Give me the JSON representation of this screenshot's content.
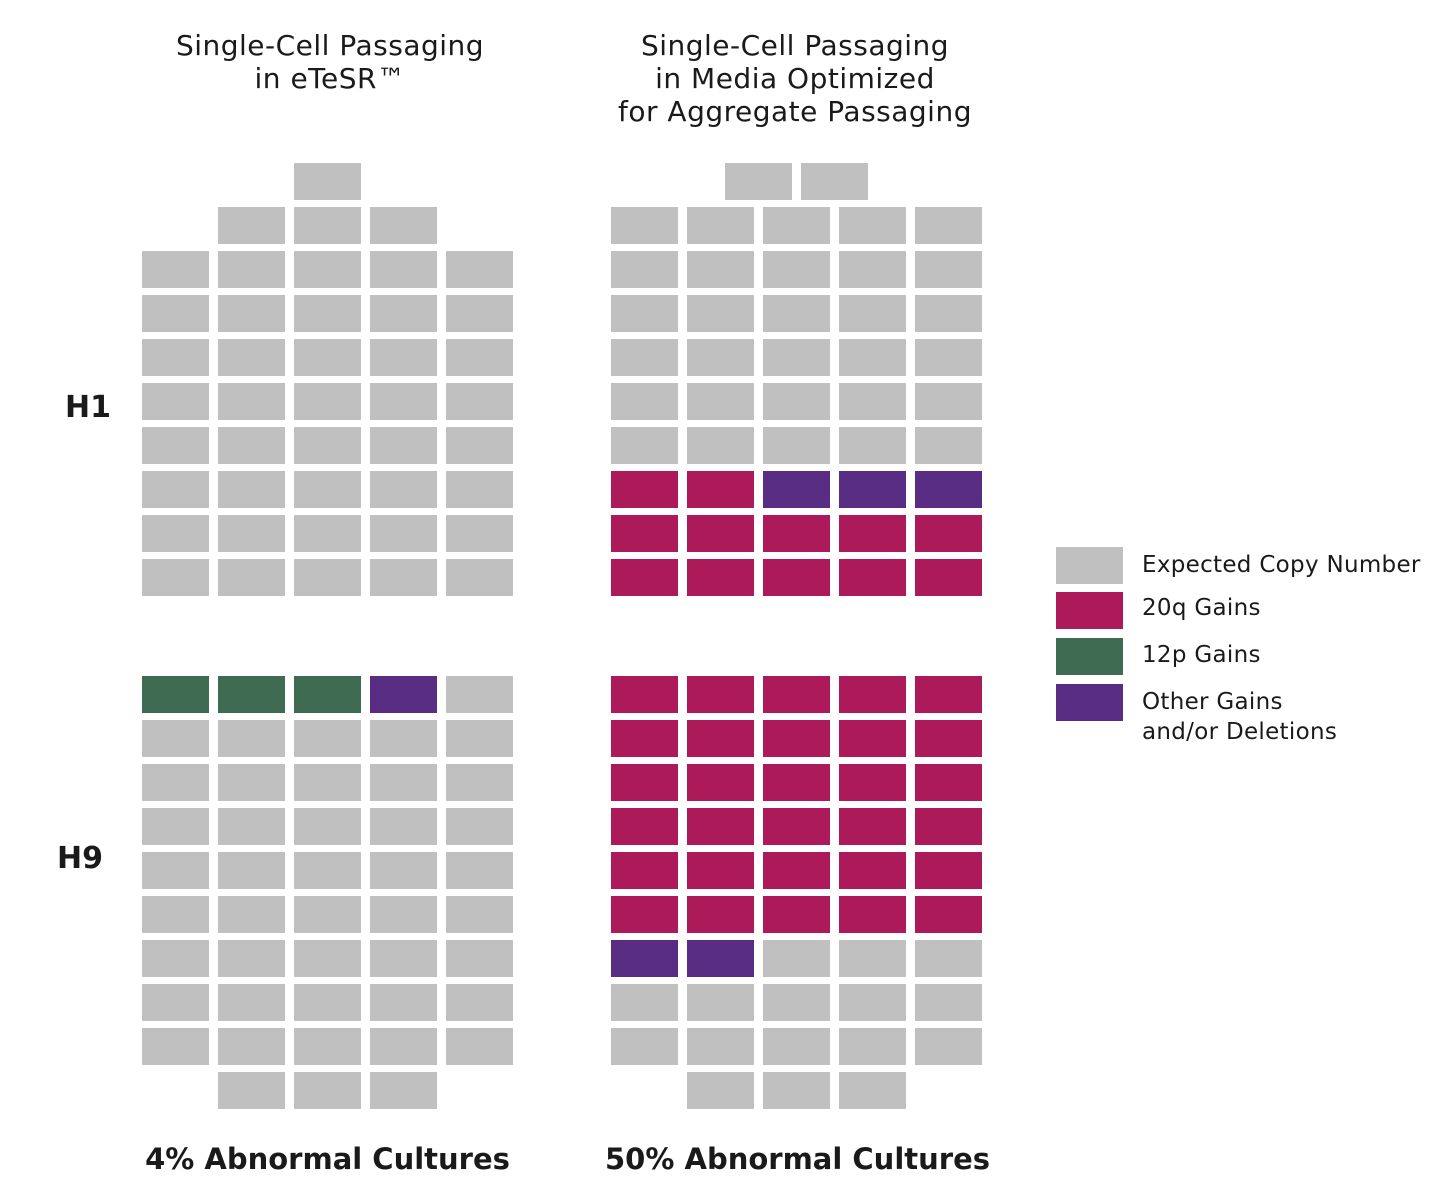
{
  "colors": {
    "expected": "#c0c0c0",
    "gain20q": "#ad1a59",
    "gain12p": "#3f6b53",
    "other": "#5a2d84"
  },
  "titles": {
    "left": [
      "Single-Cell Passaging",
      "in eTeSR™"
    ],
    "right": [
      "Single-Cell Passaging",
      "in Media Optimized",
      "for Aggregate Passaging"
    ]
  },
  "row_labels": {
    "h1": "H1",
    "h9": "H9"
  },
  "footers": {
    "left": "4% Abnormal Cultures",
    "right": "50% Abnormal Cultures"
  },
  "legend": [
    {
      "key": "expected",
      "label": "Expected Copy Number"
    },
    {
      "key": "gain20q",
      "label": "20q Gains"
    },
    {
      "key": "gain12p",
      "label": "12p Gains"
    },
    {
      "key": "other",
      "label": "Other Gains",
      "label2": "and/or Deletions"
    }
  ],
  "chart_data": {
    "type": "waffle",
    "title": "",
    "columns_per_panel": 5,
    "panels": [
      {
        "name": "H1 Single-Cell Passaging in eTeSR",
        "row_lengths": [
          1,
          3,
          5,
          5,
          5,
          5,
          5,
          5,
          5,
          5
        ],
        "cells": [
          [
            "expected"
          ],
          [
            "expected",
            "expected",
            "expected"
          ],
          [
            "expected",
            "expected",
            "expected",
            "expected",
            "expected"
          ],
          [
            "expected",
            "expected",
            "expected",
            "expected",
            "expected"
          ],
          [
            "expected",
            "expected",
            "expected",
            "expected",
            "expected"
          ],
          [
            "expected",
            "expected",
            "expected",
            "expected",
            "expected"
          ],
          [
            "expected",
            "expected",
            "expected",
            "expected",
            "expected"
          ],
          [
            "expected",
            "expected",
            "expected",
            "expected",
            "expected"
          ],
          [
            "expected",
            "expected",
            "expected",
            "expected",
            "expected"
          ],
          [
            "expected",
            "expected",
            "expected",
            "expected",
            "expected"
          ]
        ]
      },
      {
        "name": "H1 Single-Cell Passaging in Media Optimized for Aggregate Passaging",
        "row_lengths": [
          2,
          5,
          5,
          5,
          5,
          5,
          5,
          5,
          5,
          5
        ],
        "cells": [
          [
            "expected",
            "expected"
          ],
          [
            "expected",
            "expected",
            "expected",
            "expected",
            "expected"
          ],
          [
            "expected",
            "expected",
            "expected",
            "expected",
            "expected"
          ],
          [
            "expected",
            "expected",
            "expected",
            "expected",
            "expected"
          ],
          [
            "expected",
            "expected",
            "expected",
            "expected",
            "expected"
          ],
          [
            "expected",
            "expected",
            "expected",
            "expected",
            "expected"
          ],
          [
            "expected",
            "expected",
            "expected",
            "expected",
            "expected"
          ],
          [
            "gain20q",
            "gain20q",
            "other",
            "other",
            "other"
          ],
          [
            "gain20q",
            "gain20q",
            "gain20q",
            "gain20q",
            "gain20q"
          ],
          [
            "gain20q",
            "gain20q",
            "gain20q",
            "gain20q",
            "gain20q"
          ]
        ]
      },
      {
        "name": "H9 Single-Cell Passaging in eTeSR",
        "row_lengths": [
          5,
          5,
          5,
          5,
          5,
          5,
          5,
          5,
          5,
          3
        ],
        "cells": [
          [
            "gain12p",
            "gain12p",
            "gain12p",
            "other",
            "expected"
          ],
          [
            "expected",
            "expected",
            "expected",
            "expected",
            "expected"
          ],
          [
            "expected",
            "expected",
            "expected",
            "expected",
            "expected"
          ],
          [
            "expected",
            "expected",
            "expected",
            "expected",
            "expected"
          ],
          [
            "expected",
            "expected",
            "expected",
            "expected",
            "expected"
          ],
          [
            "expected",
            "expected",
            "expected",
            "expected",
            "expected"
          ],
          [
            "expected",
            "expected",
            "expected",
            "expected",
            "expected"
          ],
          [
            "expected",
            "expected",
            "expected",
            "expected",
            "expected"
          ],
          [
            "expected",
            "expected",
            "expected",
            "expected",
            "expected"
          ],
          [
            "expected",
            "expected",
            "expected"
          ]
        ]
      },
      {
        "name": "H9 Single-Cell Passaging in Media Optimized for Aggregate Passaging",
        "row_lengths": [
          5,
          5,
          5,
          5,
          5,
          5,
          5,
          5,
          5,
          3
        ],
        "cells": [
          [
            "gain20q",
            "gain20q",
            "gain20q",
            "gain20q",
            "gain20q"
          ],
          [
            "gain20q",
            "gain20q",
            "gain20q",
            "gain20q",
            "gain20q"
          ],
          [
            "gain20q",
            "gain20q",
            "gain20q",
            "gain20q",
            "gain20q"
          ],
          [
            "gain20q",
            "gain20q",
            "gain20q",
            "gain20q",
            "gain20q"
          ],
          [
            "gain20q",
            "gain20q",
            "gain20q",
            "gain20q",
            "gain20q"
          ],
          [
            "gain20q",
            "gain20q",
            "gain20q",
            "gain20q",
            "gain20q"
          ],
          [
            "other",
            "other",
            "expected",
            "expected",
            "expected"
          ],
          [
            "expected",
            "expected",
            "expected",
            "expected",
            "expected"
          ],
          [
            "expected",
            "expected",
            "expected",
            "expected",
            "expected"
          ],
          [
            "expected",
            "expected",
            "expected"
          ]
        ]
      }
    ]
  }
}
